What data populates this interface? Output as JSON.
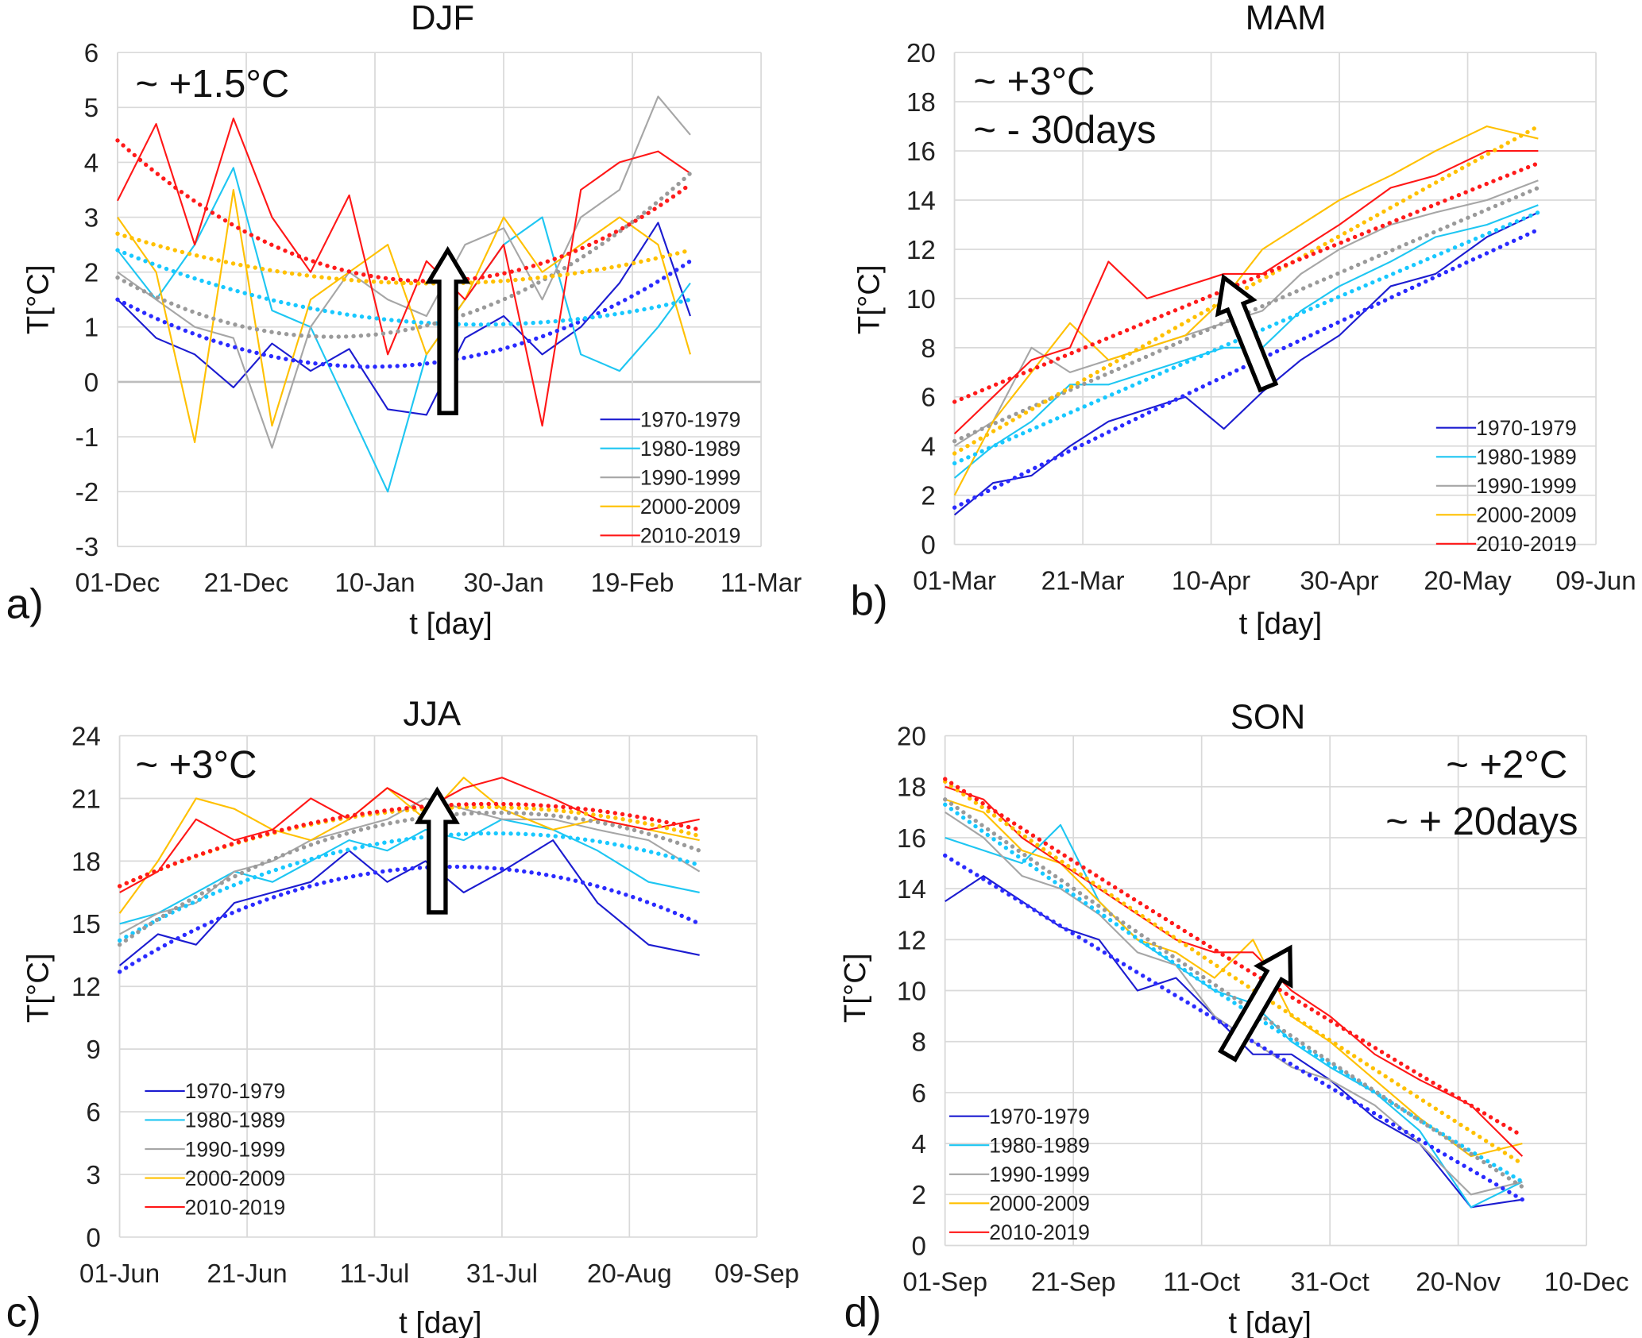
{
  "colors": {
    "1970-1979": "#1c1cd0",
    "1980-1989": "#1ec6f2",
    "1990-1999": "#a6a6a6",
    "2000-2009": "#ffc000",
    "2010-2019": "#ff1717"
  },
  "trend_colors": {
    "1970-1979": "#2a2aff",
    "1980-1989": "#18c8ff",
    "1990-1999": "#9a9a9a",
    "2000-2009": "#ffc000",
    "2010-2019": "#ff1a1a"
  },
  "chart_data": [
    {
      "type": "line",
      "panel_label": "a)",
      "title": "DJF",
      "xlabel": "t [day]",
      "ylabel": "T[°C]",
      "xticks": [
        "01-Dec",
        "21-Dec",
        "10-Jan",
        "30-Jan",
        "19-Feb",
        "11-Mar"
      ],
      "yticks": [
        "-3",
        "-2",
        "-1",
        "0",
        "1",
        "2",
        "3",
        "4",
        "5",
        "6"
      ],
      "ylim": [
        -3,
        6
      ],
      "grid": true,
      "legend": "bottom-right",
      "annotations": [
        "~ +1.5°C"
      ],
      "x": [
        "01-Dec",
        "07-Dec",
        "13-Dec",
        "19-Dec",
        "25-Dec",
        "31-Dec",
        "06-Jan",
        "12-Jan",
        "18-Jan",
        "24-Jan",
        "30-Jan",
        "05-Feb",
        "11-Feb",
        "17-Feb",
        "23-Feb",
        "28-Feb"
      ],
      "series": [
        {
          "name": "1970-1979",
          "values": [
            1.5,
            0.8,
            0.5,
            -0.1,
            0.7,
            0.2,
            0.6,
            -0.5,
            -0.6,
            0.8,
            1.2,
            0.5,
            1.0,
            1.8,
            2.9,
            1.2
          ]
        },
        {
          "name": "1980-1989",
          "values": [
            2.4,
            1.5,
            2.5,
            3.9,
            1.3,
            1.0,
            -0.5,
            -2.0,
            0.5,
            1.5,
            2.5,
            3.0,
            0.5,
            0.2,
            1.0,
            1.8
          ]
        },
        {
          "name": "1990-1999",
          "values": [
            2.0,
            1.5,
            1.0,
            0.8,
            -1.2,
            1.0,
            2.0,
            1.5,
            1.2,
            2.5,
            2.8,
            1.5,
            3.0,
            3.5,
            5.2,
            4.5
          ]
        },
        {
          "name": "2000-2009",
          "values": [
            3.0,
            2.0,
            -1.1,
            3.5,
            -0.8,
            1.5,
            2.0,
            2.5,
            0.5,
            1.5,
            3.0,
            2.0,
            2.5,
            3.0,
            2.5,
            0.5
          ]
        },
        {
          "name": "2010-2019",
          "values": [
            3.3,
            4.7,
            2.5,
            4.8,
            3.0,
            2.0,
            3.4,
            0.5,
            2.2,
            1.5,
            2.5,
            -0.8,
            3.5,
            4.0,
            4.2,
            3.8
          ]
        }
      ],
      "trend_x": [
        "01-Dec",
        "15-Jan",
        "28-Feb"
      ],
      "trends": [
        {
          "name": "1970-1979",
          "values": [
            1.5,
            0.3,
            2.2
          ]
        },
        {
          "name": "1980-1989",
          "values": [
            2.4,
            1.1,
            1.5
          ]
        },
        {
          "name": "1990-1999",
          "values": [
            1.9,
            0.95,
            3.8
          ]
        },
        {
          "name": "2000-2009",
          "values": [
            2.7,
            1.8,
            2.4
          ]
        },
        {
          "name": "2010-2019",
          "values": [
            4.4,
            1.85,
            3.6
          ]
        }
      ]
    },
    {
      "type": "line",
      "panel_label": "b)",
      "title": "MAM",
      "xlabel": "t [day]",
      "ylabel": "T[°C]",
      "xticks": [
        "01-Mar",
        "21-Mar",
        "10-Apr",
        "30-Apr",
        "20-May",
        "09-Jun"
      ],
      "yticks": [
        "0",
        "2",
        "4",
        "6",
        "8",
        "10",
        "12",
        "14",
        "16",
        "18",
        "20"
      ],
      "ylim": [
        0,
        20
      ],
      "grid": true,
      "legend": "bottom-right",
      "annotations": [
        "~ +3°C",
        "~ - 30days"
      ],
      "x": [
        "01-Mar",
        "07-Mar",
        "13-Mar",
        "19-Mar",
        "25-Mar",
        "31-Mar",
        "06-Apr",
        "12-Apr",
        "18-Apr",
        "24-Apr",
        "30-Apr",
        "08-May",
        "15-May",
        "23-May",
        "31-May"
      ],
      "series": [
        {
          "name": "1970-1979",
          "values": [
            1.2,
            2.5,
            2.8,
            4.0,
            5.0,
            5.5,
            6.0,
            4.7,
            6.2,
            7.5,
            8.5,
            10.5,
            11.0,
            12.5,
            13.5
          ]
        },
        {
          "name": "1980-1989",
          "values": [
            2.7,
            4.0,
            5.0,
            6.5,
            6.5,
            7.0,
            7.5,
            8.0,
            8.0,
            9.5,
            10.5,
            11.5,
            12.5,
            13.0,
            13.8
          ]
        },
        {
          "name": "1990-1999",
          "values": [
            4.0,
            5.0,
            8.0,
            7.0,
            7.5,
            8.0,
            8.5,
            9.0,
            9.5,
            11.0,
            12.0,
            13.0,
            13.5,
            14.0,
            14.8
          ]
        },
        {
          "name": "2000-2009",
          "values": [
            2.0,
            5.0,
            7.0,
            9.0,
            7.5,
            8.0,
            8.5,
            10.0,
            12.0,
            13.0,
            14.0,
            15.0,
            16.0,
            17.0,
            16.5
          ]
        },
        {
          "name": "2010-2019",
          "values": [
            4.5,
            6.0,
            7.5,
            8.0,
            11.5,
            10.0,
            10.5,
            11.0,
            11.0,
            12.0,
            13.0,
            14.5,
            15.0,
            16.0,
            16.0
          ]
        }
      ],
      "trend_x": [
        "01-Mar",
        "15-Apr",
        "31-May"
      ],
      "trends": [
        {
          "name": "1970-1979",
          "values": [
            1.5,
            7.2,
            12.8
          ]
        },
        {
          "name": "1980-1989",
          "values": [
            3.3,
            8.4,
            13.5
          ]
        },
        {
          "name": "1990-1999",
          "values": [
            4.2,
            9.35,
            14.5
          ]
        },
        {
          "name": "2000-2009",
          "values": [
            3.7,
            10.35,
            17.0
          ]
        },
        {
          "name": "2010-2019",
          "values": [
            5.8,
            10.65,
            15.5
          ]
        }
      ]
    },
    {
      "type": "line",
      "panel_label": "c)",
      "title": "JJA",
      "xlabel": "t [day]",
      "ylabel": "T[°C]",
      "xticks": [
        "01-Jun",
        "21-Jun",
        "11-Jul",
        "31-Jul",
        "20-Aug",
        "09-Sep"
      ],
      "yticks": [
        "0",
        "3",
        "6",
        "9",
        "12",
        "15",
        "18",
        "21",
        "24"
      ],
      "ylim": [
        0,
        24
      ],
      "grid": true,
      "legend": "bottom-left",
      "annotations": [
        "~ +3°C"
      ],
      "x": [
        "01-Jun",
        "07-Jun",
        "13-Jun",
        "19-Jun",
        "25-Jun",
        "01-Jul",
        "07-Jul",
        "13-Jul",
        "19-Jul",
        "25-Jul",
        "31-Jul",
        "08-Aug",
        "15-Aug",
        "23-Aug",
        "31-Aug"
      ],
      "series": [
        {
          "name": "1970-1979",
          "values": [
            13.0,
            14.5,
            14.0,
            16.0,
            16.5,
            17.0,
            18.5,
            17.0,
            18.0,
            16.5,
            17.5,
            19.0,
            16.0,
            14.0,
            13.5
          ]
        },
        {
          "name": "1980-1989",
          "values": [
            15.0,
            15.5,
            16.5,
            17.5,
            17.0,
            18.0,
            19.0,
            18.5,
            19.5,
            19.0,
            20.0,
            19.5,
            18.5,
            17.0,
            16.5
          ]
        },
        {
          "name": "1990-1999",
          "values": [
            14.5,
            15.5,
            16.0,
            17.5,
            18.0,
            19.0,
            19.5,
            20.0,
            21.0,
            20.5,
            20.0,
            20.0,
            19.5,
            19.0,
            17.5
          ]
        },
        {
          "name": "2000-2009",
          "values": [
            15.5,
            18.0,
            21.0,
            20.5,
            19.5,
            19.0,
            20.0,
            21.5,
            20.0,
            22.0,
            20.5,
            19.5,
            20.0,
            19.5,
            19.0
          ]
        },
        {
          "name": "2010-2019",
          "values": [
            16.5,
            17.5,
            20.0,
            19.0,
            19.5,
            21.0,
            20.0,
            21.5,
            20.5,
            21.5,
            22.0,
            21.0,
            20.0,
            19.5,
            20.0
          ]
        }
      ],
      "trend_x": [
        "01-Jun",
        "15-Jul",
        "31-Aug"
      ],
      "trends": [
        {
          "name": "1970-1979",
          "values": [
            12.7,
            17.6,
            15.0
          ]
        },
        {
          "name": "1980-1989",
          "values": [
            14.2,
            19.0,
            17.8
          ]
        },
        {
          "name": "1990-1999",
          "values": [
            14.0,
            19.9,
            18.5
          ]
        },
        {
          "name": "2000-2009",
          "values": [
            16.8,
            20.4,
            19.2
          ]
        },
        {
          "name": "2010-2019",
          "values": [
            16.8,
            20.5,
            19.5
          ]
        }
      ]
    },
    {
      "type": "line",
      "panel_label": "d)",
      "title": "SON",
      "xlabel": "t [day]",
      "ylabel": "T[°C]",
      "xticks": [
        "01-Sep",
        "21-Sep",
        "11-Oct",
        "31-Oct",
        "20-Nov",
        "10-Dec"
      ],
      "yticks": [
        "0",
        "2",
        "4",
        "6",
        "8",
        "10",
        "12",
        "14",
        "16",
        "18",
        "20"
      ],
      "ylim": [
        0,
        20
      ],
      "grid": true,
      "legend": "bottom-left",
      "annotations": [
        "~ +2°C",
        "~ + 20days"
      ],
      "x": [
        "01-Sep",
        "07-Sep",
        "13-Sep",
        "19-Sep",
        "25-Sep",
        "01-Oct",
        "07-Oct",
        "13-Oct",
        "19-Oct",
        "25-Oct",
        "31-Oct",
        "07-Nov",
        "14-Nov",
        "22-Nov",
        "30-Nov"
      ],
      "series": [
        {
          "name": "1970-1979",
          "values": [
            13.5,
            14.5,
            13.5,
            12.5,
            12.0,
            10.0,
            10.5,
            9.0,
            7.5,
            7.5,
            6.5,
            5.0,
            4.0,
            1.5,
            1.8
          ]
        },
        {
          "name": "1980-1989",
          "values": [
            16.0,
            15.5,
            15.0,
            16.5,
            13.5,
            12.0,
            11.0,
            10.0,
            9.5,
            8.0,
            7.0,
            6.0,
            4.5,
            1.5,
            2.5
          ]
        },
        {
          "name": "1990-1999",
          "values": [
            17.0,
            16.0,
            14.5,
            14.0,
            13.0,
            11.5,
            11.0,
            9.0,
            8.0,
            7.0,
            6.5,
            5.5,
            4.0,
            2.0,
            2.5
          ]
        },
        {
          "name": "2000-2009",
          "values": [
            17.5,
            17.0,
            15.5,
            15.0,
            13.5,
            12.0,
            11.5,
            10.5,
            12.0,
            9.0,
            8.0,
            6.5,
            5.0,
            3.5,
            4.0
          ]
        },
        {
          "name": "2010-2019",
          "values": [
            18.0,
            17.5,
            16.0,
            15.0,
            14.0,
            13.0,
            12.0,
            11.5,
            11.5,
            10.0,
            9.0,
            7.5,
            6.5,
            5.5,
            3.5
          ]
        }
      ],
      "trend_x": [
        "01-Sep",
        "15-Oct",
        "30-Nov"
      ],
      "trends": [
        {
          "name": "1970-1979",
          "values": [
            15.3,
            8.6,
            1.8
          ]
        },
        {
          "name": "1980-1989",
          "values": [
            17.3,
            9.7,
            2.5
          ]
        },
        {
          "name": "1990-1999",
          "values": [
            17.5,
            9.9,
            2.3
          ]
        },
        {
          "name": "2000-2009",
          "values": [
            18.2,
            10.7,
            3.2
          ]
        },
        {
          "name": "2010-2019",
          "values": [
            18.3,
            11.3,
            4.3
          ]
        }
      ]
    }
  ]
}
